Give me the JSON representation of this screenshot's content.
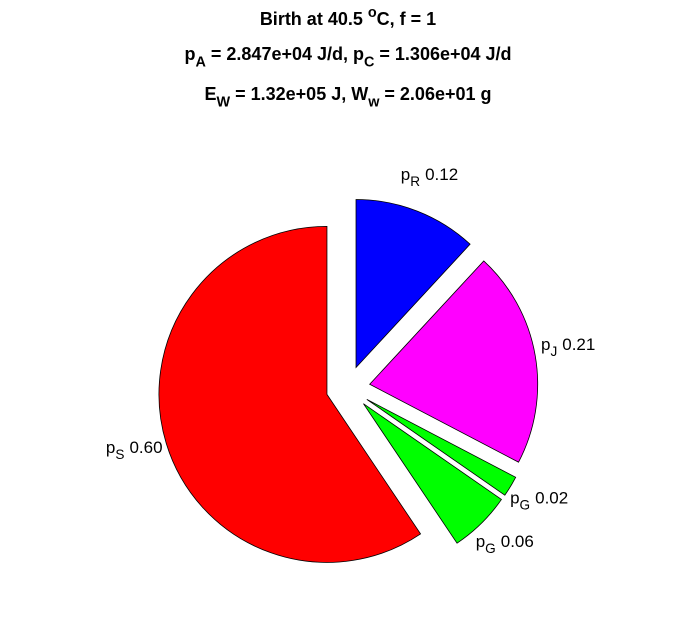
{
  "chart_data": {
    "type": "pie",
    "title": [
      [
        {
          "text": "Birth at 40.5 "
        },
        {
          "text": "o",
          "shift": "super"
        },
        {
          "text": "C, f = 1"
        }
      ],
      [
        {
          "text": "p"
        },
        {
          "text": "A",
          "shift": "sub"
        },
        {
          "text": " = 2.847e+04 J/d, p"
        },
        {
          "text": "C",
          "shift": "sub"
        },
        {
          "text": " = 1.306e+04 J/d"
        }
      ],
      [
        {
          "text": "E"
        },
        {
          "text": "W",
          "shift": "sub"
        },
        {
          "text": " = 1.32e+05 J, W"
        },
        {
          "text": "w",
          "shift": "sub"
        },
        {
          "text": " = 2.06e+01 g"
        }
      ]
    ],
    "categories": [
      [
        {
          "text": "p"
        },
        {
          "text": "R",
          "shift": "sub"
        }
      ],
      [
        {
          "text": "p"
        },
        {
          "text": "J",
          "shift": "sub"
        }
      ],
      [
        {
          "text": "p"
        },
        {
          "text": "G",
          "shift": "sub"
        }
      ],
      [
        {
          "text": "p"
        },
        {
          "text": "G",
          "shift": "sub"
        }
      ],
      [
        {
          "text": "p"
        },
        {
          "text": "S",
          "shift": "sub"
        }
      ]
    ],
    "values": [
      0.12,
      0.21,
      0.02,
      0.06,
      0.6
    ],
    "value_labels": [
      "0.12",
      "0.21",
      "0.02",
      "0.06",
      "0.60"
    ],
    "colors": [
      "#0000ff",
      "#ff00ff",
      "#00ff00",
      "#00ff00",
      "#ff0000"
    ],
    "explode": [
      1,
      1,
      1,
      1,
      1
    ],
    "start_angle": 0,
    "direction": "clockwise"
  }
}
